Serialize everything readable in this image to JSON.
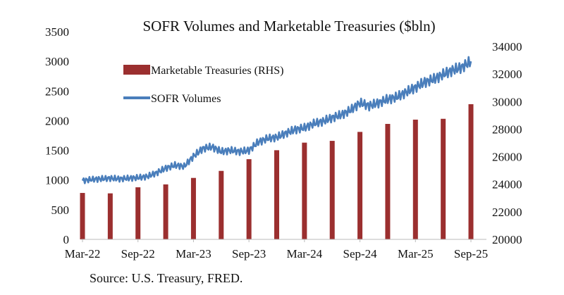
{
  "chart_data": {
    "type": "bar+line",
    "title": "SOFR Volumes and Marketable Treasuries ($bln)",
    "source": "Source: U.S. Treasury, FRED.",
    "x_tick_labels": [
      "Mar-22",
      "Sep-22",
      "Mar-23",
      "Sep-23",
      "Mar-24",
      "Sep-24",
      "Mar-25",
      "Sep-25"
    ],
    "left_axis": {
      "ylim": [
        0,
        3500
      ],
      "ticks": [
        "0",
        "500",
        "1000",
        "1500",
        "2000",
        "2500",
        "3000",
        "3500"
      ]
    },
    "right_axis": {
      "ylim": [
        20000,
        34000
      ],
      "ticks": [
        "20000",
        "22000",
        "24000",
        "26000",
        "28000",
        "30000",
        "32000",
        "34000"
      ]
    },
    "legend_placement": "top-left",
    "series": [
      {
        "name": "Marketable Treasuries (RHS)",
        "type": "bar",
        "axis": "right",
        "color": "#9b2f2f",
        "x": [
          "Mar-22",
          "Jun-22",
          "Sep-22",
          "Dec-22",
          "Mar-23",
          "Jun-23",
          "Sep-23",
          "Dec-23",
          "Mar-24",
          "Jun-24",
          "Sep-24",
          "Dec-24",
          "Mar-25",
          "Jun-25",
          "Sep-25"
        ],
        "values": [
          23370,
          23340,
          23780,
          23990,
          24460,
          24970,
          25820,
          26470,
          27020,
          27150,
          27800,
          28380,
          28690,
          28750,
          29810
        ]
      },
      {
        "name": "SOFR Volumes",
        "type": "line",
        "axis": "left",
        "color": "#4a7ebb",
        "values": [
          990,
          1010,
          1020,
          1030,
          1020,
          1030,
          1040,
          1060,
          1120,
          1200,
          1250,
          1230,
          1400,
          1530,
          1560,
          1480,
          1500,
          1480,
          1500,
          1640,
          1700,
          1720,
          1790,
          1850,
          1880,
          1950,
          1990,
          2050,
          2100,
          2180,
          2300,
          2250,
          2300,
          2360,
          2400,
          2480,
          2560,
          2650,
          2700,
          2780,
          2850,
          2900,
          3000
        ]
      }
    ]
  }
}
